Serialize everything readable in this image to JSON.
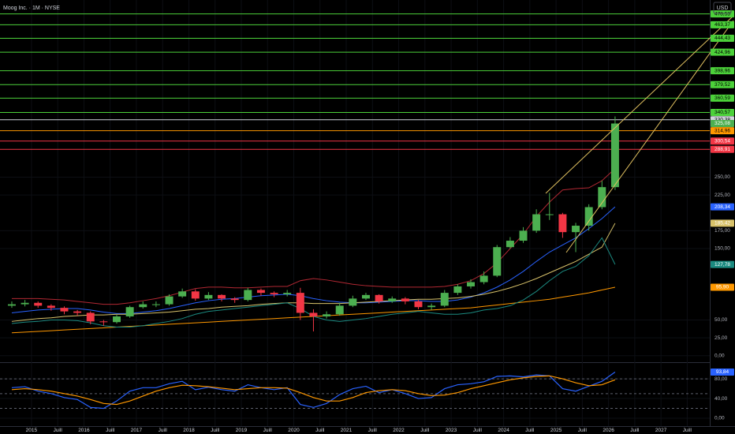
{
  "chart_data": [
    {
      "type": "candlestick",
      "title": "Moog Inc. · 1M · NYSE",
      "currency": "USD",
      "xlim": [
        2014.4,
        2027.93
      ],
      "xticks": [
        {
          "value": 2015,
          "label": "2015"
        },
        {
          "value": 2015.5,
          "label": "Juill"
        },
        {
          "value": 2016,
          "label": "2016"
        },
        {
          "value": 2016.5,
          "label": "Juill"
        },
        {
          "value": 2017,
          "label": "2017"
        },
        {
          "value": 2017.5,
          "label": "Juill"
        },
        {
          "value": 2018,
          "label": "2018"
        },
        {
          "value": 2018.5,
          "label": "Juill"
        },
        {
          "value": 2019,
          "label": "2019"
        },
        {
          "value": 2019.5,
          "label": "Juill"
        },
        {
          "value": 2020,
          "label": "2020"
        },
        {
          "value": 2020.5,
          "label": "Juill"
        },
        {
          "value": 2021,
          "label": "2021"
        },
        {
          "value": 2021.5,
          "label": "Juill"
        },
        {
          "value": 2022,
          "label": "2022"
        },
        {
          "value": 2022.5,
          "label": "Juill"
        },
        {
          "value": 2023,
          "label": "2023"
        },
        {
          "value": 2023.5,
          "label": "Juill"
        },
        {
          "value": 2024,
          "label": "2024"
        },
        {
          "value": 2024.5,
          "label": "Juill"
        },
        {
          "value": 2025,
          "label": "2025"
        },
        {
          "value": 2025.5,
          "label": "Juill"
        },
        {
          "value": 2026,
          "label": "2026"
        },
        {
          "value": 2026.5,
          "label": "Juill"
        },
        {
          "value": 2027,
          "label": "2027"
        },
        {
          "value": 2027.5,
          "label": "Juill"
        }
      ],
      "ylim": [
        -8,
        498
      ],
      "yticks": [
        {
          "value": 0,
          "label": "0,00"
        },
        {
          "value": 25,
          "label": "25,00"
        },
        {
          "value": 50,
          "label": "50,00"
        },
        {
          "value": 150,
          "label": "150,00"
        },
        {
          "value": 175,
          "label": "175,00"
        },
        {
          "value": 225,
          "label": "225,00"
        },
        {
          "value": 250,
          "label": "250,00"
        }
      ],
      "up_color": "#4caf50",
      "down_color": "#f23645",
      "x": [
        2014.625,
        2014.875,
        2015.125,
        2015.375,
        2015.625,
        2015.875,
        2016.125,
        2016.375,
        2016.625,
        2016.875,
        2017.125,
        2017.375,
        2017.625,
        2017.875,
        2018.125,
        2018.375,
        2018.625,
        2018.875,
        2019.125,
        2019.375,
        2019.625,
        2019.875,
        2020.125,
        2020.375,
        2020.625,
        2020.875,
        2021.125,
        2021.375,
        2021.625,
        2021.875,
        2022.125,
        2022.375,
        2022.625,
        2022.875,
        2023.125,
        2023.375,
        2023.625,
        2023.875,
        2024.125,
        2024.375,
        2024.625,
        2024.875,
        2025.125,
        2025.375,
        2025.625,
        2025.875,
        2026.125
      ],
      "open": [
        70,
        72,
        74,
        70,
        67,
        62,
        60,
        48,
        47,
        55,
        68,
        72,
        72,
        83,
        90,
        80,
        85,
        80,
        78,
        92,
        88,
        86,
        88,
        60,
        55,
        58,
        70,
        80,
        85,
        76,
        80,
        76,
        68,
        70,
        88,
        97,
        103,
        112,
        152,
        161,
        175,
        198,
        198,
        173,
        182,
        208,
        236
      ],
      "high": [
        76,
        78,
        76,
        72,
        69,
        64,
        62,
        50,
        57,
        70,
        76,
        76,
        86,
        94,
        93,
        89,
        86,
        82,
        95,
        94,
        90,
        92,
        95,
        65,
        62,
        74,
        84,
        88,
        86,
        83,
        82,
        78,
        73,
        92,
        100,
        107,
        118,
        155,
        166,
        180,
        205,
        228,
        200,
        186,
        212,
        245,
        335
      ],
      "low": [
        67,
        69,
        67,
        63,
        58,
        56,
        44,
        42,
        45,
        53,
        66,
        68,
        70,
        81,
        77,
        78,
        76,
        74,
        76,
        84,
        82,
        83,
        50,
        34,
        52,
        56,
        68,
        78,
        73,
        74,
        72,
        65,
        64,
        68,
        85,
        94,
        100,
        110,
        150,
        158,
        172,
        190,
        165,
        145,
        175,
        205,
        232
      ],
      "close": [
        72,
        74,
        70,
        67,
        62,
        60,
        48,
        47,
        55,
        68,
        72,
        72,
        83,
        90,
        80,
        85,
        80,
        78,
        92,
        88,
        86,
        88,
        60,
        55,
        58,
        70,
        80,
        85,
        76,
        80,
        76,
        68,
        70,
        88,
        97,
        103,
        112,
        152,
        161,
        175,
        198,
        198,
        173,
        182,
        208,
        236,
        325.08
      ],
      "close_label": "325,08",
      "overlays": [
        {
          "color": "#2962ff",
          "values": [
            60,
            62,
            64,
            65,
            66,
            66,
            64,
            61,
            59,
            59,
            61,
            63,
            66,
            70,
            74,
            77,
            79,
            80,
            82,
            84,
            85,
            86,
            84,
            80,
            77,
            75,
            74,
            74,
            75,
            76,
            77,
            77,
            76,
            76,
            78,
            82,
            88,
            96,
            106,
            118,
            132,
            145,
            155,
            165,
            178,
            192,
            208.34
          ],
          "end_label": "208,34"
        },
        {
          "color": "#d8c26a",
          "values": [
            48,
            50,
            52,
            53,
            55,
            56,
            57,
            57,
            58,
            58,
            59,
            60,
            61,
            63,
            65,
            66,
            68,
            69,
            70,
            72,
            73,
            74,
            74,
            73,
            73,
            73,
            74,
            75,
            76,
            77,
            78,
            79,
            79,
            80,
            81,
            83,
            86,
            90,
            95,
            101,
            108,
            116,
            124,
            132,
            142,
            152,
            185.42
          ],
          "end_label": "185,42"
        },
        {
          "color": "#ff9800",
          "values": [
            32,
            33,
            34,
            35,
            36,
            37,
            38,
            39,
            40,
            41,
            42,
            43,
            44,
            45,
            46,
            47,
            48,
            49,
            50,
            51,
            52,
            53,
            54,
            55,
            56,
            57,
            58,
            59,
            60,
            61,
            62,
            63,
            64,
            65,
            66,
            67,
            69,
            71,
            73,
            75,
            77,
            79,
            82,
            85,
            88,
            92,
            95.9
          ],
          "end_label": "95,90"
        },
        {
          "color": "#b22833",
          "values": [
            80,
            80,
            80,
            79,
            78,
            76,
            74,
            72,
            72,
            74,
            77,
            80,
            84,
            89,
            94,
            96,
            96,
            95,
            95,
            96,
            97,
            97,
            105,
            108,
            106,
            103,
            100,
            98,
            97,
            96,
            96,
            96,
            96,
            97,
            100,
            105,
            115,
            130,
            150,
            170,
            195,
            215,
            232,
            234,
            235,
            245,
            262
          ]
        },
        {
          "color": "#1b8a80",
          "values": [
            45,
            47,
            48,
            50,
            50,
            49,
            46,
            42,
            40,
            40,
            42,
            45,
            48,
            52,
            58,
            62,
            64,
            66,
            68,
            70,
            72,
            74,
            66,
            55,
            50,
            48,
            50,
            52,
            55,
            58,
            60,
            62,
            60,
            58,
            58,
            60,
            64,
            66,
            70,
            78,
            90,
            105,
            118,
            125,
            140,
            165,
            127.78
          ],
          "end_label": "127,78"
        }
      ],
      "levels": [
        {
          "value": 478.53,
          "label": "478,53",
          "color": "#4cd13a"
        },
        {
          "value": 463.37,
          "label": "463,37",
          "color": "#4cd13a"
        },
        {
          "value": 444.43,
          "label": "444,43",
          "color": "#4cd13a"
        },
        {
          "value": 424.96,
          "label": "424,96",
          "color": "#4cd13a"
        },
        {
          "value": 398.96,
          "label": "398,96",
          "color": "#4cd13a"
        },
        {
          "value": 379.52,
          "label": "379,52",
          "color": "#4cd13a"
        },
        {
          "value": 360.59,
          "label": "360,59",
          "color": "#4cd13a"
        },
        {
          "value": 340.57,
          "label": "340,57",
          "color": "#4cd13a"
        },
        {
          "value": 330.38,
          "label": "330,38",
          "color": "#d1d4dc"
        },
        {
          "value": 314.96,
          "label": "314,96",
          "color": "#ff9800"
        },
        {
          "value": 300.54,
          "label": "300,54",
          "color": "#f23645"
        },
        {
          "value": 288.91,
          "label": "288,91",
          "color": "#f23645"
        }
      ]
    },
    {
      "type": "rsi",
      "ylim": [
        -16,
        109
      ],
      "yticks": [
        {
          "value": 0,
          "label": "0,00"
        },
        {
          "value": 40,
          "label": "40,00"
        },
        {
          "value": 80,
          "label": "80,00"
        }
      ],
      "hlines": [
        80,
        50,
        20
      ],
      "series": [
        {
          "color": "#2962ff",
          "values": [
            62,
            64,
            55,
            50,
            42,
            38,
            22,
            20,
            35,
            55,
            62,
            62,
            70,
            75,
            58,
            63,
            58,
            55,
            68,
            62,
            58,
            62,
            28,
            22,
            30,
            48,
            60,
            65,
            52,
            58,
            50,
            40,
            42,
            60,
            68,
            70,
            74,
            85,
            86,
            84,
            88,
            86,
            60,
            55,
            65,
            75,
            93.84
          ],
          "end_label": "93,84"
        },
        {
          "color": "#ff9800",
          "values": [
            58,
            60,
            58,
            55,
            50,
            45,
            38,
            30,
            28,
            35,
            45,
            55,
            62,
            67,
            66,
            64,
            61,
            58,
            60,
            62,
            62,
            61,
            52,
            42,
            35,
            35,
            42,
            52,
            56,
            58,
            56,
            50,
            46,
            47,
            52,
            60,
            66,
            72,
            78,
            82,
            85,
            86,
            80,
            72,
            66,
            68,
            78
          ]
        }
      ]
    }
  ]
}
